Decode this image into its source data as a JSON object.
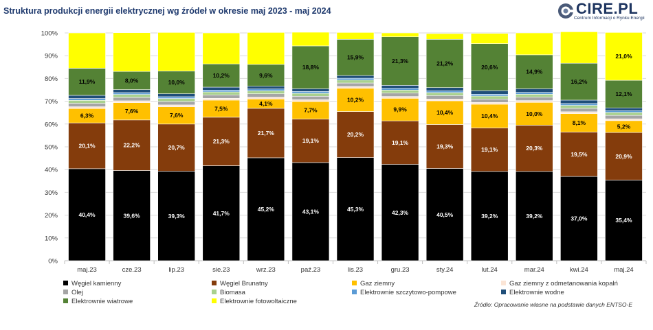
{
  "title": "Struktura produkcji energii elektrycznej wg źródeł w okresie maj 2023 - maj 2024",
  "logo": {
    "name": "CIRE.PL",
    "subtitle": "Centrum Informacji o Rynku Energii"
  },
  "source": "Źródło: Opracowanie własne na podstawie danych ENTSO-E",
  "chart_data": {
    "type": "bar",
    "stacked": true,
    "percent_stacked": true,
    "categories": [
      "maj.23",
      "cze.23",
      "lip.23",
      "sie.23",
      "wrz.23",
      "paź.23",
      "lis.23",
      "gru.23",
      "sty.24",
      "lut.24",
      "mar.24",
      "kwi.24",
      "maj.24"
    ],
    "yticks": [
      "0%",
      "10%",
      "20%",
      "30%",
      "40%",
      "50%",
      "60%",
      "70%",
      "80%",
      "90%",
      "100%"
    ],
    "ylim": [
      0,
      100
    ],
    "grid": true,
    "legend_position": "bottom",
    "series": [
      {
        "name": "Węgiel kamienny",
        "color": "#000000",
        "label_color": "#ffffff",
        "values": [
          40.4,
          39.6,
          39.3,
          41.7,
          45.2,
          43.1,
          45.3,
          42.3,
          40.5,
          39.2,
          39.2,
          37.0,
          35.4
        ],
        "labels": [
          "40,4%",
          "39,6%",
          "39,3%",
          "41,7%",
          "45,2%",
          "43,1%",
          "45,3%",
          "42,3%",
          "40,5%",
          "39,2%",
          "39,2%",
          "37,0%",
          "35,4%"
        ]
      },
      {
        "name": "Węgiel Brunatny",
        "color": "#843c0c",
        "label_color": "#ffffff",
        "values": [
          20.1,
          22.2,
          20.7,
          21.3,
          21.7,
          19.1,
          20.2,
          19.1,
          19.3,
          19.1,
          20.3,
          19.5,
          20.9
        ],
        "labels": [
          "20,1%",
          "22,2%",
          "20,7%",
          "21,3%",
          "21,7%",
          "19,1%",
          "20,2%",
          "19,1%",
          "19,3%",
          "19,1%",
          "20,3%",
          "19,5%",
          "20,9%"
        ]
      },
      {
        "name": "Gaz  ziemny",
        "color": "#ffc000",
        "label_color": "#000000",
        "values": [
          6.3,
          7.6,
          7.6,
          7.5,
          4.1,
          7.7,
          10.2,
          9.9,
          10.4,
          10.4,
          10.0,
          8.1,
          5.2
        ],
        "labels": [
          "6,3%",
          "7,6%",
          "7,6%",
          "7,5%",
          "4,1%",
          "7,7%",
          "10,2%",
          "9,9%",
          "10,4%",
          "10,4%",
          "10,0%",
          "8,1%",
          "5,2%"
        ]
      },
      {
        "name": "Gaz ziemny z odmetanowania kopalń",
        "color": "#fbe5d6",
        "values": [
          0.8,
          0.8,
          0.8,
          0.8,
          0.8,
          0.8,
          0.8,
          0.8,
          0.8,
          0.8,
          0.8,
          0.8,
          0.8
        ]
      },
      {
        "name": "Olej",
        "color": "#a5a5a5",
        "values": [
          1.5,
          1.5,
          1.5,
          1.5,
          1.5,
          1.5,
          1.5,
          1.5,
          1.5,
          1.5,
          1.5,
          1.5,
          1.5
        ]
      },
      {
        "name": "Biomasa",
        "color": "#a9d18e",
        "values": [
          1.3,
          1.3,
          1.3,
          1.3,
          1.3,
          1.3,
          1.3,
          1.3,
          1.3,
          1.3,
          1.3,
          1.3,
          1.3
        ]
      },
      {
        "name": "Elektrownie szczytowo-pompowe",
        "color": "#5b9bd5",
        "values": [
          0.8,
          0.8,
          0.8,
          0.8,
          0.8,
          0.8,
          0.8,
          0.8,
          0.8,
          0.8,
          0.8,
          0.8,
          0.8
        ]
      },
      {
        "name": "Elektrownie wodne",
        "color": "#1f4e79",
        "values": [
          1.4,
          1.3,
          1.3,
          1.3,
          1.2,
          1.2,
          1.2,
          1.3,
          1.4,
          1.6,
          1.6,
          1.5,
          1.2
        ]
      },
      {
        "name": "Elektrownie wiatrowe",
        "color": "#548235",
        "label_color": "#000000",
        "values": [
          11.9,
          8.0,
          10.0,
          10.2,
          9.6,
          18.8,
          15.9,
          21.3,
          21.2,
          20.6,
          14.9,
          16.2,
          12.1
        ],
        "labels": [
          "11,9%",
          "8,0%",
          "10,0%",
          "10,2%",
          "9,6%",
          "18,8%",
          "15,9%",
          "21,3%",
          "21,2%",
          "20,6%",
          "14,9%",
          "16,2%",
          "12,1%"
        ]
      },
      {
        "name": "Elektrownie fotowoltaiczne",
        "color": "#ffff00",
        "label_color": "#000000",
        "values": [
          15.5,
          17.0,
          16.9,
          13.6,
          14.0,
          6.0,
          3.0,
          1.7,
          2.5,
          4.5,
          9.6,
          13.8,
          21.0
        ],
        "labels": [
          "",
          "",
          "",
          "",
          "",
          "",
          "",
          "",
          "",
          "",
          "",
          "",
          "21,0%"
        ]
      }
    ]
  }
}
